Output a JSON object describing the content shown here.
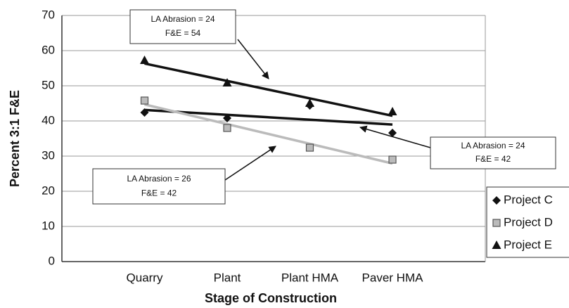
{
  "chart_data": {
    "type": "scatter",
    "xlabel": "Stage of Construction",
    "ylabel": "Percent 3:1 F&E",
    "categories": [
      "Quarry",
      "Plant",
      "Plant HMA",
      "Paver HMA"
    ],
    "series": [
      {
        "name": "Project C",
        "color": "#111111",
        "marker": "diamond",
        "values": [
          42.4,
          40.8,
          44.4,
          36.6
        ]
      },
      {
        "name": "Project D",
        "color": "#bbbbbb",
        "marker": "square",
        "values": [
          45.8,
          38,
          32.4,
          29
        ]
      },
      {
        "name": "Project E",
        "color": "#111111",
        "marker": "triangle",
        "values": [
          57.2,
          50.8,
          45,
          42.6
        ]
      }
    ],
    "trendline": true,
    "ylim": [
      0,
      70
    ],
    "yticks": [
      0,
      10,
      20,
      30,
      40,
      50,
      60,
      70
    ],
    "grid": true,
    "legend": "right",
    "annotations": [
      {
        "lines": [
          "LA Abrasion = 24",
          "F&E = 54"
        ]
      },
      {
        "lines": [
          "LA Abrasion = 26",
          "F&E = 42"
        ]
      },
      {
        "lines": [
          "LA Abrasion = 24",
          "F&E = 42"
        ]
      }
    ]
  }
}
